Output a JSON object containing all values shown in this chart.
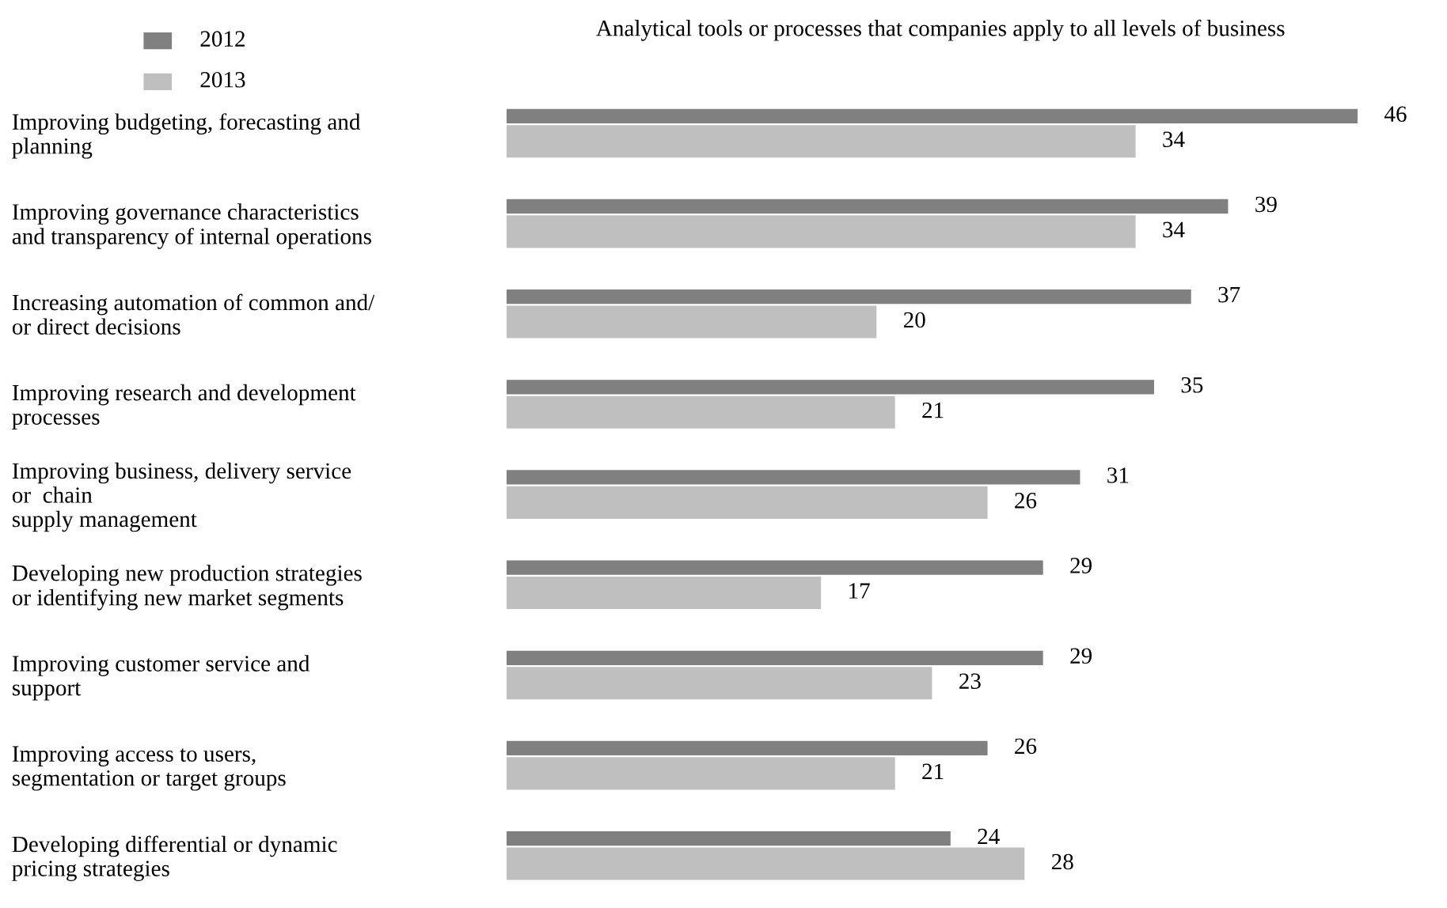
{
  "chart_data": {
    "type": "bar",
    "orientation": "horizontal",
    "title": "Analytical tools or processes that companies apply to all levels of business",
    "categories": [
      "Improving budgeting, forecasting and\nplanning",
      "Improving governance characteristics\nand transparency of internal operations",
      "Increasing automation of common and/\nor direct decisions",
      "Improving research and development\nprocesses",
      "Improving business, delivery service\nor  chain\nsupply management",
      "Developing new production strategies\nor identifying new market segments",
      "Improving customer service and\nsupport",
      "Improving access to users,\nsegmentation or target groups",
      "Developing differential or dynamic\npricing strategies"
    ],
    "series": [
      {
        "name": "2012",
        "color": "#808080",
        "values": [
          46,
          39,
          37,
          35,
          31,
          29,
          29,
          26,
          24
        ]
      },
      {
        "name": "2013",
        "color": "#bfbfbf",
        "values": [
          34,
          34,
          20,
          21,
          26,
          17,
          23,
          21,
          28
        ]
      }
    ],
    "data_labels": true,
    "legend": "top left",
    "grid": false
  }
}
